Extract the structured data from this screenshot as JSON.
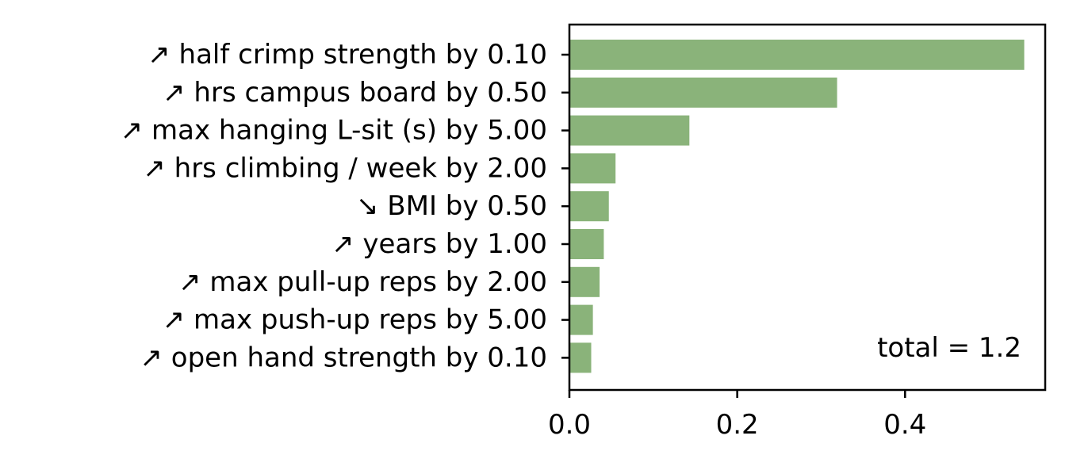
{
  "chart_data": {
    "type": "bar",
    "orientation": "horizontal",
    "categories": [
      "↗ half crimp strength by 0.10",
      "↗ hrs campus board by 0.50",
      "↗ max hanging L-sit (s) by 5.00",
      "↗ hrs climbing / week by 2.00",
      "↘ BMI by 0.50",
      "↗ years by 1.00",
      "↗ max pull-up reps by 2.00",
      "↗ max push-up reps by 5.00",
      "↗ open hand strength by 0.10"
    ],
    "values": [
      0.542,
      0.319,
      0.143,
      0.055,
      0.047,
      0.041,
      0.036,
      0.028,
      0.026
    ],
    "xlim": [
      0,
      0.567
    ],
    "xticks": [
      0.0,
      0.2,
      0.4
    ],
    "xtick_labels": [
      "0.0",
      "0.2",
      "0.4"
    ],
    "bar_color": "#8ab37a",
    "annotation": "total = 1.2",
    "title": "",
    "xlabel": "",
    "ylabel": "",
    "grid": false
  }
}
